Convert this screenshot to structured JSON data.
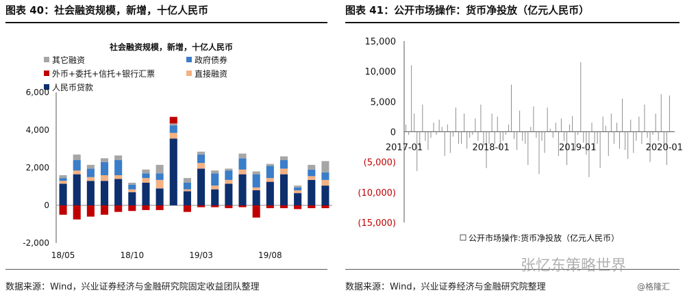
{
  "left": {
    "title": "图表 40：社会融资规模，新增，十亿人民币",
    "source": "数据来源：Wind，兴业证券经济与金融研究院固定收益团队整理",
    "chart_data": {
      "type": "bar",
      "stacked": true,
      "title": "社会融资规模，新增，十亿人民币",
      "ylim": [
        -2000,
        6000
      ],
      "yticks": [
        -2000,
        0,
        2000,
        4000,
        6000
      ],
      "ytick_labels": [
        "-2,000",
        "0",
        "2,000",
        "4,000",
        "6,000"
      ],
      "xtick_labels": [
        {
          "label": "18/05",
          "at": 0
        },
        {
          "label": "18/10",
          "at": 5
        },
        {
          "label": "19/03",
          "at": 10
        },
        {
          "label": "19/08",
          "at": 15
        }
      ],
      "categories": [
        "18/05",
        "18/06",
        "18/07",
        "18/08",
        "18/09",
        "18/10",
        "18/11",
        "18/12",
        "19/01",
        "19/02",
        "19/03",
        "19/04",
        "19/05",
        "19/06",
        "19/07",
        "19/08",
        "19/09",
        "19/10",
        "19/11",
        "19/12"
      ],
      "legend_position": "top-left",
      "series": [
        {
          "name": "人民币贷款",
          "color": "#0d2f6e",
          "values": [
            1150,
            1650,
            1300,
            1300,
            1400,
            700,
            1200,
            900,
            3550,
            750,
            1950,
            850,
            1150,
            1650,
            800,
            1250,
            1650,
            650,
            1350,
            1050
          ]
        },
        {
          "name": "直接融资",
          "color": "#f4b183",
          "values": [
            150,
            200,
            200,
            300,
            200,
            150,
            250,
            450,
            300,
            100,
            300,
            200,
            200,
            250,
            150,
            200,
            300,
            150,
            200,
            300
          ]
        },
        {
          "name": "政府债券",
          "color": "#3a7dc9",
          "values": [
            150,
            550,
            450,
            700,
            800,
            250,
            250,
            350,
            400,
            350,
            450,
            650,
            500,
            600,
            700,
            650,
            450,
            150,
            350,
            400
          ]
        },
        {
          "name": "其它融资",
          "color": "#a6a6a6",
          "values": [
            150,
            300,
            200,
            200,
            250,
            100,
            200,
            450,
            100,
            250,
            150,
            150,
            100,
            250,
            150,
            100,
            200,
            100,
            250,
            600
          ]
        },
        {
          "name": "外币+委托+信托+银行汇票",
          "color": "#c00000",
          "values": [
            -500,
            -750,
            -600,
            -500,
            -350,
            -300,
            -250,
            -250,
            350,
            -350,
            -100,
            -100,
            -150,
            -100,
            -650,
            -150,
            -150,
            -200,
            -150,
            -150
          ]
        }
      ]
    }
  },
  "right": {
    "title": "图表 41：公开市场操作：货币净投放（亿元人民币）",
    "source": "数据来源：Wind，兴业证券经济与金融研究院整理",
    "chart_data": {
      "type": "bar",
      "ylim": [
        -15000,
        15000
      ],
      "yticks": [
        -15000,
        -10000,
        -5000,
        0,
        5000,
        10000,
        15000
      ],
      "ytick_labels": [
        "(15,000)",
        "(10,000)",
        "(5,000)",
        "0",
        "5,000",
        "10,000",
        "15,000"
      ],
      "xtick_labels": [
        {
          "label": "2017-01",
          "at": 0
        },
        {
          "label": "2018-01",
          "at": 250
        },
        {
          "label": "2019-01",
          "at": 500
        },
        {
          "label": "2020-01",
          "at": 750
        }
      ],
      "legend_position": "bottom-right",
      "series": [
        {
          "name": "公开市场操作:货币净投放（亿元人民币）",
          "color": "#8c8c8c",
          "values": [
            1200,
            -500,
            11000,
            3000,
            -6500,
            -2500,
            4500,
            -1500,
            -3000,
            -1000,
            1500,
            -500,
            2000,
            800,
            -4000,
            1200,
            -3500,
            -800,
            4000,
            -2000,
            -2000,
            3000,
            -2800,
            -1000,
            -500,
            2200,
            -1500,
            4500,
            -2400,
            -6000,
            -2000,
            3000,
            -2000,
            2500,
            -3000,
            -1500,
            -500,
            1200,
            7800,
            -1200,
            -3000,
            3500,
            -1500,
            -2000,
            -5500,
            800,
            4200,
            -1000,
            -7000,
            -1500,
            -3500,
            4000,
            500,
            -1000,
            1500,
            -4000,
            2200,
            -1500,
            -5500,
            1200,
            2600,
            -3000,
            -500,
            11500,
            -1800,
            -3800,
            -7500,
            1500,
            -3000,
            -2000,
            -6000,
            2500,
            1000,
            -4000,
            3000,
            -2000,
            1500,
            -2800,
            5500,
            -3000,
            -4500,
            2000,
            -3500,
            -1500,
            2500,
            -2000,
            4500,
            -1000,
            -5000,
            -500,
            3000,
            -1500,
            6200,
            -2500,
            -5500,
            6000
          ]
        }
      ]
    }
  },
  "watermark": "张忆东策略世界",
  "watermark2": "@格隆汇"
}
